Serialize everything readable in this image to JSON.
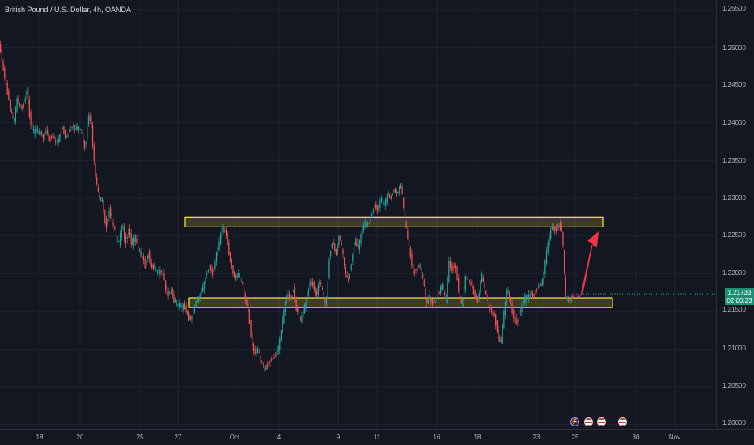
{
  "header": {
    "title": "British Pound / U.S. Dollar, 4h, OANDA"
  },
  "price_axis": {
    "labels": [
      "1.25500",
      "1.25000",
      "1.24500",
      "1.24000",
      "1.23500",
      "1.23000",
      "1.22500",
      "1.22000",
      "1.21500",
      "1.21000",
      "1.20500",
      "1.20000"
    ]
  },
  "time_axis": {
    "labels": [
      "18",
      "20",
      "25",
      "27",
      "Oct",
      "4",
      "9",
      "11",
      "16",
      "18",
      "23",
      "25",
      "30",
      "Nov"
    ]
  },
  "current_price": {
    "value": "1.21733",
    "countdown": "02:00:23",
    "color": "#26a69a"
  },
  "events": [
    "lightning-event-icon",
    "us-flag-event-icon",
    "us-flag-event-icon",
    "us-flag-event-icon"
  ],
  "zones": {
    "border_color": "#ffeb3b",
    "fill": "rgba(255,235,59,0.18)"
  },
  "arrow_color": "#f23645",
  "colors": {
    "up": "#26a69a",
    "down": "#ef5350",
    "background": "#131722",
    "grid": "#1f2330"
  },
  "chart_data": {
    "type": "candlestick",
    "title": "British Pound / U.S. Dollar, 4h, OANDA",
    "ylim": [
      1.198,
      1.2575
    ],
    "support_zone": [
      1.2155,
      1.2168
    ],
    "resistance_zone": [
      1.2262,
      1.2275
    ],
    "last_price": 1.21733,
    "path": [
      [
        0,
        1.2505
      ],
      [
        3,
        1.2485
      ],
      [
        6,
        1.2465
      ],
      [
        9,
        1.2448
      ],
      [
        12,
        1.243
      ],
      [
        15,
        1.2412
      ],
      [
        18,
        1.2398
      ],
      [
        22,
        1.2432
      ],
      [
        26,
        1.2418
      ],
      [
        30,
        1.2422
      ],
      [
        34,
        1.2445
      ],
      [
        38,
        1.2405
      ],
      [
        42,
        1.2388
      ],
      [
        46,
        1.2392
      ],
      [
        50,
        1.2385
      ],
      [
        54,
        1.238
      ],
      [
        58,
        1.239
      ],
      [
        62,
        1.2376
      ],
      [
        66,
        1.2385
      ],
      [
        70,
        1.2372
      ],
      [
        74,
        1.238
      ],
      [
        78,
        1.2395
      ],
      [
        82,
        1.238
      ],
      [
        86,
        1.239
      ],
      [
        90,
        1.2398
      ],
      [
        94,
        1.239
      ],
      [
        98,
        1.2396
      ],
      [
        102,
        1.2385
      ],
      [
        106,
        1.2365
      ],
      [
        110,
        1.2412
      ],
      [
        114,
        1.24
      ],
      [
        117,
        1.235
      ],
      [
        120,
        1.232
      ],
      [
        124,
        1.23
      ],
      [
        128,
        1.2295
      ],
      [
        132,
        1.226
      ],
      [
        136,
        1.2285
      ],
      [
        140,
        1.227
      ],
      [
        144,
        1.225
      ],
      [
        148,
        1.224
      ],
      [
        152,
        1.2265
      ],
      [
        156,
        1.2242
      ],
      [
        160,
        1.2258
      ],
      [
        164,
        1.2238
      ],
      [
        168,
        1.225
      ],
      [
        172,
        1.223
      ],
      [
        176,
        1.2225
      ],
      [
        180,
        1.221
      ],
      [
        184,
        1.2228
      ],
      [
        188,
        1.2208
      ],
      [
        192,
        1.221
      ],
      [
        196,
        1.22
      ],
      [
        200,
        1.2205
      ],
      [
        204,
        1.219
      ],
      [
        208,
        1.217
      ],
      [
        212,
        1.218
      ],
      [
        216,
        1.2165
      ],
      [
        220,
        1.216
      ],
      [
        224,
        1.2155
      ],
      [
        228,
        1.2158
      ],
      [
        232,
        1.2148
      ],
      [
        236,
        1.2138
      ],
      [
        240,
        1.215
      ],
      [
        244,
        1.2165
      ],
      [
        248,
        1.2172
      ],
      [
        252,
        1.218
      ],
      [
        256,
        1.22
      ],
      [
        260,
        1.221
      ],
      [
        264,
        1.2198
      ],
      [
        268,
        1.2225
      ],
      [
        272,
        1.224
      ],
      [
        276,
        1.2262
      ],
      [
        280,
        1.2255
      ],
      [
        284,
        1.2225
      ],
      [
        288,
        1.2205
      ],
      [
        292,
        1.2195
      ],
      [
        296,
        1.2198
      ],
      [
        300,
        1.219
      ],
      [
        304,
        1.2165
      ],
      [
        308,
        1.215
      ],
      [
        312,
        1.211
      ],
      [
        316,
        1.2095
      ],
      [
        320,
        1.2098
      ],
      [
        324,
        1.2082
      ],
      [
        328,
        1.2072
      ],
      [
        332,
        1.208
      ],
      [
        336,
        1.2085
      ],
      [
        340,
        1.209
      ],
      [
        344,
        1.2095
      ],
      [
        348,
        1.212
      ],
      [
        352,
        1.215
      ],
      [
        356,
        1.2175
      ],
      [
        360,
        1.2165
      ],
      [
        364,
        1.218
      ],
      [
        368,
        1.2148
      ],
      [
        372,
        1.2138
      ],
      [
        376,
        1.215
      ],
      [
        380,
        1.2165
      ],
      [
        384,
        1.219
      ],
      [
        388,
        1.2185
      ],
      [
        392,
        1.217
      ],
      [
        396,
        1.219
      ],
      [
        400,
        1.2175
      ],
      [
        404,
        1.2155
      ],
      [
        408,
        1.222
      ],
      [
        412,
        1.2245
      ],
      [
        416,
        1.2225
      ],
      [
        420,
        1.225
      ],
      [
        424,
        1.223
      ],
      [
        428,
        1.22
      ],
      [
        432,
        1.219
      ],
      [
        436,
        1.222
      ],
      [
        440,
        1.2245
      ],
      [
        444,
        1.2235
      ],
      [
        448,
        1.2255
      ],
      [
        452,
        1.2268
      ],
      [
        456,
        1.2265
      ],
      [
        460,
        1.2278
      ],
      [
        464,
        1.2292
      ],
      [
        468,
        1.2285
      ],
      [
        472,
        1.23
      ],
      [
        476,
        1.2292
      ],
      [
        480,
        1.2305
      ],
      [
        484,
        1.23
      ],
      [
        488,
        1.2312
      ],
      [
        492,
        1.2305
      ],
      [
        496,
        1.232
      ],
      [
        500,
        1.2285
      ],
      [
        504,
        1.225
      ],
      [
        508,
        1.2225
      ],
      [
        512,
        1.22
      ],
      [
        516,
        1.2205
      ],
      [
        520,
        1.2212
      ],
      [
        524,
        1.219
      ],
      [
        528,
        1.216
      ],
      [
        532,
        1.2168
      ],
      [
        536,
        1.2158
      ],
      [
        540,
        1.2168
      ],
      [
        544,
        1.2175
      ],
      [
        548,
        1.2185
      ],
      [
        552,
        1.216
      ],
      [
        556,
        1.2215
      ],
      [
        560,
        1.2205
      ],
      [
        564,
        1.221
      ],
      [
        568,
        1.2175
      ],
      [
        572,
        1.2155
      ],
      [
        576,
        1.2195
      ],
      [
        580,
        1.219
      ],
      [
        584,
        1.2185
      ],
      [
        588,
        1.217
      ],
      [
        592,
        1.2165
      ],
      [
        596,
        1.22
      ],
      [
        600,
        1.218
      ],
      [
        604,
        1.216
      ],
      [
        608,
        1.215
      ],
      [
        612,
        1.2145
      ],
      [
        616,
        1.212
      ],
      [
        620,
        1.2105
      ],
      [
        624,
        1.215
      ],
      [
        628,
        1.218
      ],
      [
        632,
        1.216
      ],
      [
        636,
        1.214
      ],
      [
        640,
        1.2135
      ],
      [
        644,
        1.215
      ],
      [
        648,
        1.2165
      ],
      [
        652,
        1.217
      ],
      [
        656,
        1.2172
      ],
      [
        660,
        1.217
      ],
      [
        664,
        1.218
      ],
      [
        668,
        1.2185
      ],
      [
        672,
        1.219
      ],
      [
        676,
        1.2225
      ],
      [
        680,
        1.225
      ],
      [
        684,
        1.2262
      ],
      [
        688,
        1.2258
      ],
      [
        692,
        1.2265
      ],
      [
        696,
        1.2255
      ],
      [
        700,
        1.217
      ],
      [
        704,
        1.2162
      ],
      [
        708,
        1.2168
      ],
      [
        712,
        1.2172
      ]
    ]
  }
}
